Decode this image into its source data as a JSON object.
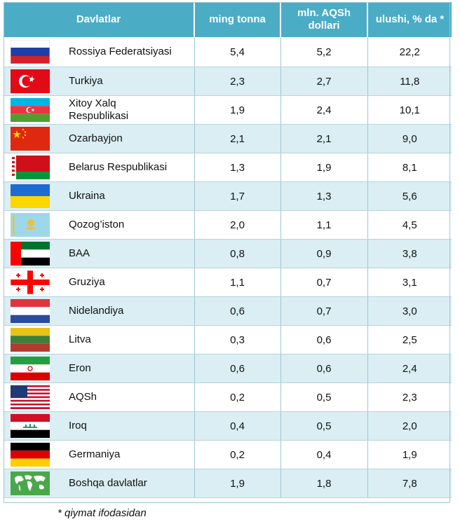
{
  "header": {
    "col_country": "Davlatlar",
    "col_tonnes": "ming tonna",
    "col_usd": "mln. AQSh dollari",
    "col_share": "ulushi, % da *"
  },
  "rows": [
    {
      "country": "Rossiya Federatsiyasi",
      "tonnes": "5,4",
      "usd": "5,2",
      "share": "22,2",
      "flag": "russia-flag-icon"
    },
    {
      "country": "Turkiya",
      "tonnes": "2,3",
      "usd": "2,7",
      "share": "11,8",
      "flag": "turkey-flag-icon"
    },
    {
      "country": "Xitoy Xalq Respublikasi",
      "tonnes": "1,9",
      "usd": "2,4",
      "share": "10,1",
      "flag": "azerbaijan-flag-icon"
    },
    {
      "country": "Ozarbayjon",
      "tonnes": "2,1",
      "usd": "2,1",
      "share": "9,0",
      "flag": "china-flag-icon"
    },
    {
      "country": "Belarus Respublikasi",
      "tonnes": "1,3",
      "usd": "1,9",
      "share": "8,1",
      "flag": "belarus-flag-icon"
    },
    {
      "country": "Ukraina",
      "tonnes": "1,7",
      "usd": "1,3",
      "share": "5,6",
      "flag": "ukraine-flag-icon"
    },
    {
      "country": "Qozog’iston",
      "tonnes": "2,0",
      "usd": "1,1",
      "share": "4,5",
      "flag": "kazakhstan-flag-icon"
    },
    {
      "country": "BAA",
      "tonnes": "0,8",
      "usd": "0,9",
      "share": "3,8",
      "flag": "uae-flag-icon"
    },
    {
      "country": "Gruziya",
      "tonnes": "1,1",
      "usd": "0,7",
      "share": "3,1",
      "flag": "georgia-flag-icon"
    },
    {
      "country": "Nidelandiya",
      "tonnes": "0,6",
      "usd": "0,7",
      "share": "3,0",
      "flag": "netherlands-flag-icon"
    },
    {
      "country": "Litva",
      "tonnes": "0,3",
      "usd": "0,6",
      "share": "2,5",
      "flag": "lithuania-flag-icon"
    },
    {
      "country": "Eron",
      "tonnes": "0,6",
      "usd": "0,6",
      "share": "2,4",
      "flag": "iran-flag-icon"
    },
    {
      "country": "AQSh",
      "tonnes": "0,2",
      "usd": "0,5",
      "share": "2,3",
      "flag": "usa-flag-icon"
    },
    {
      "country": "Iroq",
      "tonnes": "0,4",
      "usd": "0,5",
      "share": "2,0",
      "flag": "iraq-flag-icon"
    },
    {
      "country": "Germaniya",
      "tonnes": "0,2",
      "usd": "0,4",
      "share": "1,9",
      "flag": "germany-flag-icon"
    },
    {
      "country": "Boshqa davlatlar",
      "tonnes": "1,9",
      "usd": "1,8",
      "share": "7,8",
      "flag": "world-map-icon"
    }
  ],
  "footnote": "* qiymat ifodasidan"
}
